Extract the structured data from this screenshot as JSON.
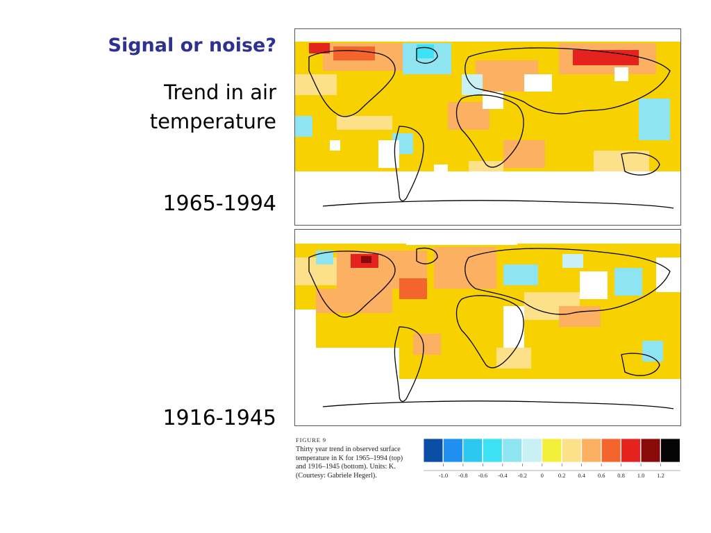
{
  "slide": {
    "title": "Signal or noise?",
    "subtitle": "Trend in air temperature",
    "title_color": "#2e3192"
  },
  "maps": [
    {
      "period": "1965-1994"
    },
    {
      "period": "1916-1945"
    }
  ],
  "caption": {
    "label": "FIGURE 9",
    "text": "Thirty year trend in observed surface temperature in K for 1965–1994 (top) and 1916–1945 (bottom). Units: K. (Courtesy: Gabriele Hegerl)."
  },
  "legend": {
    "ticks": [
      "-1.0",
      "-0.8",
      "-0.6",
      "-0.4",
      "-0.2",
      "0",
      "0.2",
      "0.4",
      "0.6",
      "0.8",
      "1.0",
      "1.2"
    ],
    "colors": [
      "#0a4ea6",
      "#1f8ff0",
      "#2cc8ef",
      "#3de3f5",
      "#8fe4f2",
      "#c9f1f5",
      "#f3ef3a",
      "#fde08a",
      "#fbb062",
      "#f3652c",
      "#e5231e",
      "#8a0a0a",
      "#050505"
    ]
  },
  "colors": {
    "ocean_neutral": "#f8d200",
    "land_outline": "#000000",
    "missing": "#ffffff"
  }
}
